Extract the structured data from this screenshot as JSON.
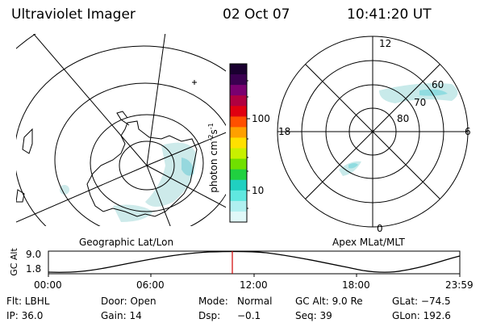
{
  "header": {
    "instrument": "Ultraviolet Imager",
    "date": "02 Oct 07",
    "time": "10:41:20 UT"
  },
  "colorbar": {
    "unit_label": "photon cm",
    "unit_exp1": "-2",
    "unit_s": "s",
    "unit_exp2": "-1",
    "tick_high": "100",
    "tick_low": "10",
    "colors": [
      "#1a0030",
      "#3a0050",
      "#7a0070",
      "#b00040",
      "#e00010",
      "#ff5000",
      "#ffa000",
      "#ffe000",
      "#c8f000",
      "#70e000",
      "#20d040",
      "#20d0c0",
      "#60e8e0",
      "#b0f0f0",
      "#e0f8f8"
    ]
  },
  "geo_map": {
    "caption": "Geographic Lat/Lon"
  },
  "polar_map": {
    "caption": "Apex MLat/MLT",
    "mlt_labels": {
      "top": "12",
      "left": "18",
      "right": "6",
      "bottom": "0"
    },
    "lat_labels": [
      "60",
      "70",
      "80"
    ]
  },
  "altitude_plot": {
    "ylabel": "GC Alt",
    "ymax": "9.0",
    "ymin": "1.8",
    "xticks": [
      "00:00",
      "06:00",
      "12:00",
      "18:00",
      "23:59"
    ],
    "current_time_marker_color": "#d00000"
  },
  "status": {
    "filter": "Flt: LBHL",
    "door": "Door: Open",
    "mode_label": "Mode:",
    "mode_value": "Normal",
    "gc_alt": "GC Alt: 9.0 Re",
    "glat": "GLat: −74.5",
    "ip": "IP: 36.0",
    "gain": "Gain: 14",
    "dsp_label": "Dsp:",
    "dsp_value": "−0.1",
    "seq": "Seq: 39",
    "glon": "GLon: 192.6"
  }
}
